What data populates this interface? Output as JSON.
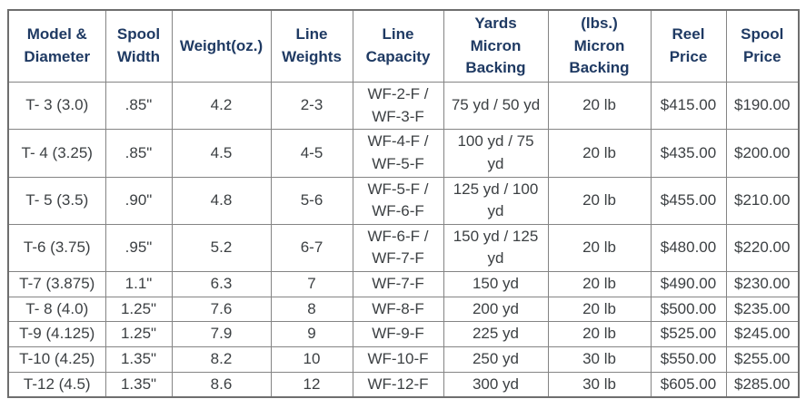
{
  "colors": {
    "header_text": "#1f3a63",
    "body_text": "#3c4043",
    "border": "#848484",
    "background": "#ffffff"
  },
  "chart_data": {
    "type": "table",
    "title": "",
    "columns": [
      {
        "key": "model_diameter",
        "label": "Model &\nDiameter"
      },
      {
        "key": "spool_width",
        "label": "Spool\nWidth"
      },
      {
        "key": "weight_oz",
        "label": "Weight(oz.)"
      },
      {
        "key": "line_weights",
        "label": "Line\nWeights"
      },
      {
        "key": "line_capacity",
        "label": "Line\nCapacity"
      },
      {
        "key": "yards_micron_backing",
        "label": "Yards\nMicron\nBacking"
      },
      {
        "key": "lbs_micron_backing",
        "label": "(lbs.)\nMicron\nBacking"
      },
      {
        "key": "reel_price",
        "label": "Reel\nPrice"
      },
      {
        "key": "spool_price",
        "label": "Spool\nPrice"
      }
    ],
    "rows": [
      [
        "T- 3 (3.0)",
        ".85\"",
        "4.2",
        "2-3",
        "WF-2-F / WF-3-F",
        "75 yd / 50 yd",
        "20 lb",
        "$415.00",
        "$190.00"
      ],
      [
        "T- 4 (3.25)",
        ".85\"",
        "4.5",
        "4-5",
        "WF-4-F / WF-5-F",
        "100 yd / 75 yd",
        "20 lb",
        "$435.00",
        "$200.00"
      ],
      [
        "T- 5 (3.5)",
        ".90\"",
        "4.8",
        "5-6",
        "WF-5-F / WF-6-F",
        "125 yd / 100 yd",
        "20 lb",
        "$455.00",
        "$210.00"
      ],
      [
        "T-6 (3.75)",
        ".95\"",
        "5.2",
        "6-7",
        "WF-6-F / WF-7-F",
        "150 yd / 125 yd",
        "20 lb",
        "$480.00",
        "$220.00"
      ],
      [
        "T-7 (3.875)",
        "1.1\"",
        "6.3",
        "7",
        "WF-7-F",
        "150 yd",
        "20 lb",
        "$490.00",
        "$230.00"
      ],
      [
        "T- 8 (4.0)",
        "1.25\"",
        "7.6",
        "8",
        "WF-8-F",
        "200 yd",
        "20 lb",
        "$500.00",
        "$235.00"
      ],
      [
        "T-9 (4.125)",
        "1.25\"",
        "7.9",
        "9",
        "WF-9-F",
        "225 yd",
        "20 lb",
        "$525.00",
        "$245.00"
      ],
      [
        "T-10 (4.25)",
        "1.35\"",
        "8.2",
        "10",
        "WF-10-F",
        "250 yd",
        "30 lb",
        "$550.00",
        "$255.00"
      ],
      [
        "T-12 (4.5)",
        "1.35\"",
        "8.6",
        "12",
        "WF-12-F",
        "300 yd",
        "30 lb",
        "$605.00",
        "$285.00"
      ]
    ]
  }
}
